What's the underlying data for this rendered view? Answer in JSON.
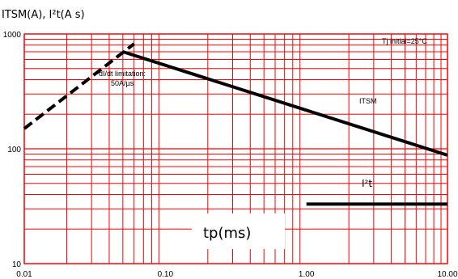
{
  "chart_data": {
    "type": "line",
    "title": "ITSM(A), I²t(A s)",
    "xlabel": "tp(ms)",
    "ylabel": "",
    "x_scale": "log",
    "y_scale": "log",
    "xlim": [
      0.01,
      10
    ],
    "ylim": [
      10,
      1000
    ],
    "x_tick_labels": [
      "0.01",
      "0.10",
      "1.00",
      "10.00"
    ],
    "y_tick_labels": [
      "1000",
      "100",
      "10"
    ],
    "grid": true,
    "grid_color": "#ff0000",
    "series": [
      {
        "name": "ITSM",
        "style": "solid",
        "color": "#000000",
        "x": [
          0.05,
          10
        ],
        "y": [
          700,
          88
        ]
      },
      {
        "name": "dI/dt limitation: 50A/µs",
        "style": "dashed",
        "color": "#000000",
        "x": [
          0.01,
          0.06
        ],
        "y": [
          150,
          820
        ]
      },
      {
        "name": "I²t",
        "style": "solid",
        "color": "#000000",
        "x": [
          1,
          10
        ],
        "y": [
          33,
          33
        ]
      }
    ],
    "annotations": {
      "tj_initial": "Tj initial=25°C",
      "didt_line1": "dI/dt limitation:",
      "didt_line2": "50A/µs",
      "itsm_label": "ITSM",
      "i2t_label": "I²t"
    }
  }
}
